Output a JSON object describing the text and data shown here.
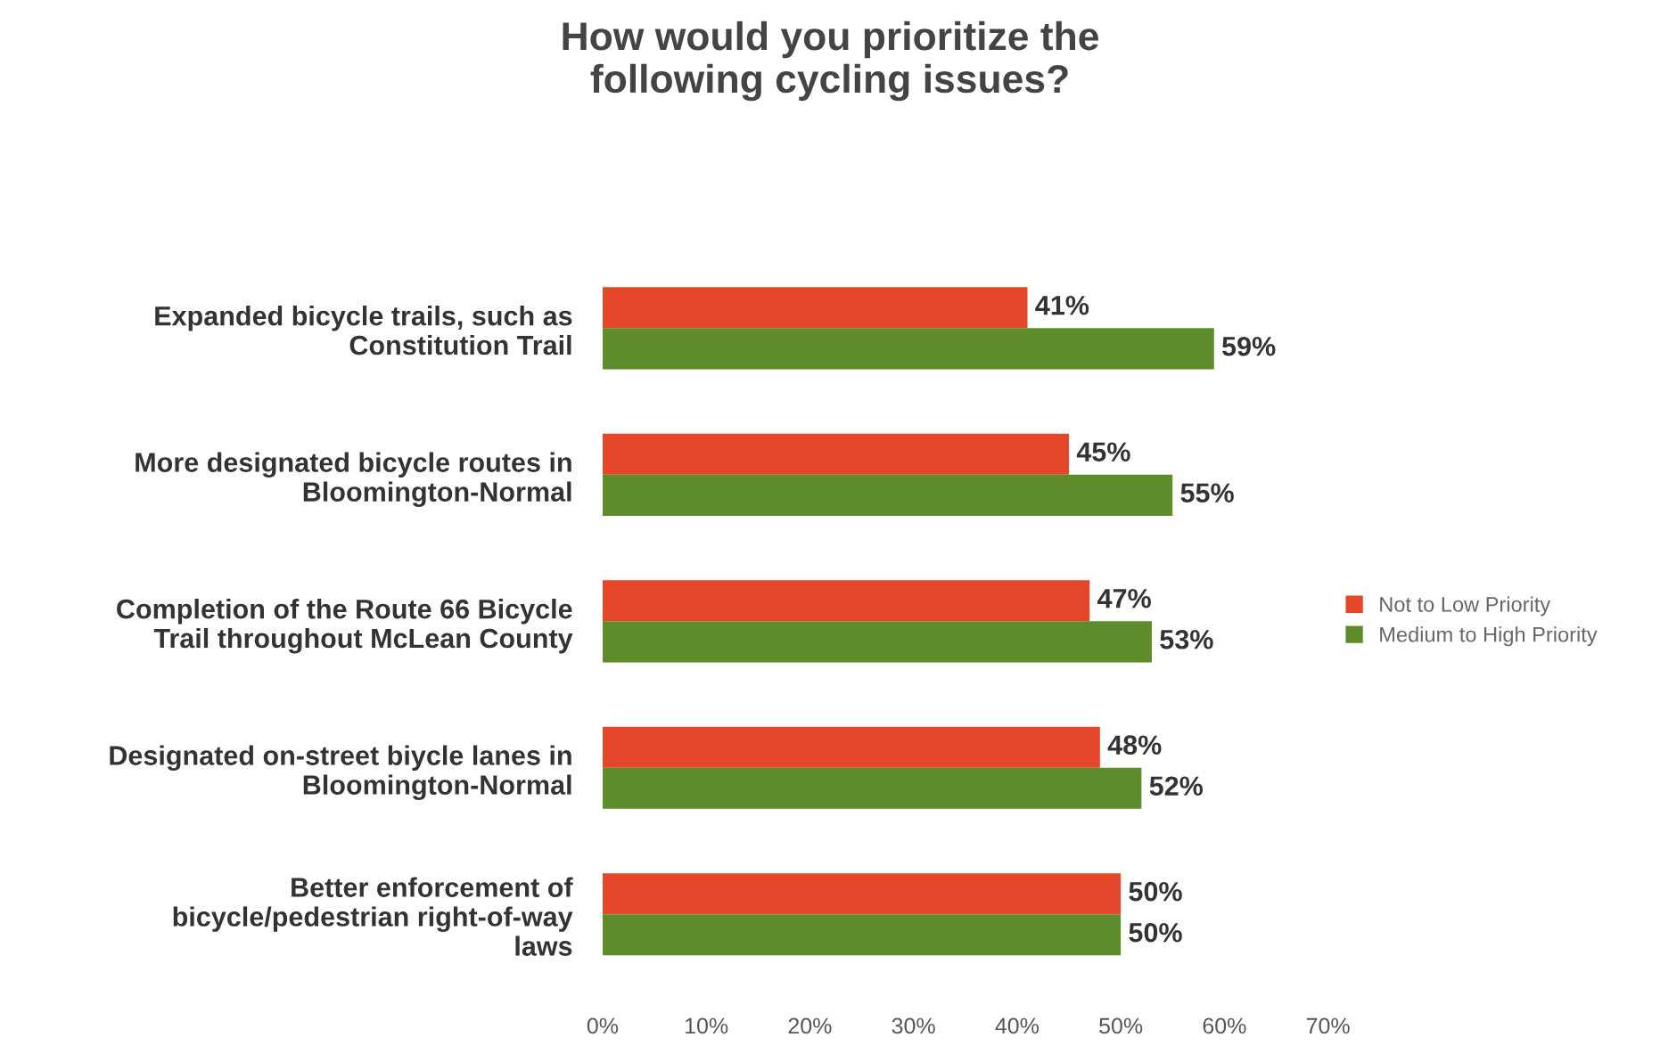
{
  "chart_data": {
    "type": "bar",
    "orientation": "horizontal",
    "title": "How would you prioritize the\nfollowing cycling issues?",
    "categories": [
      "Expanded bicycle trails, such as\nConstitution Trail",
      "More designated bicycle routes in\nBloomington-Normal",
      "Completion of the Route 66 Bicycle\nTrail throughout McLean County",
      "Designated on-street biycle lanes in\nBloomington-Normal",
      "Better enforcement of\nbicycle/pedestrian right-of-way\nlaws"
    ],
    "series": [
      {
        "name": "Not to Low Priority",
        "color": "#e5472b",
        "values": [
          41,
          45,
          47,
          48,
          50
        ],
        "value_labels": [
          "41%",
          "45%",
          "47%",
          "48%",
          "50%"
        ]
      },
      {
        "name": "Medium to High Priority",
        "color": "#5e8c2a",
        "values": [
          59,
          55,
          53,
          52,
          50
        ],
        "value_labels": [
          "59%",
          "55%",
          "53%",
          "52%",
          "50%"
        ]
      }
    ],
    "xlim": [
      0,
      70
    ],
    "xticks": [
      {
        "value": 0,
        "label": "0%"
      },
      {
        "value": 10,
        "label": "10%"
      },
      {
        "value": 20,
        "label": "20%"
      },
      {
        "value": 30,
        "label": "30%"
      },
      {
        "value": 40,
        "label": "40%"
      },
      {
        "value": 50,
        "label": "50%"
      },
      {
        "value": 60,
        "label": "60%"
      },
      {
        "value": 70,
        "label": "70%"
      }
    ],
    "legend": "right",
    "grid": false
  }
}
